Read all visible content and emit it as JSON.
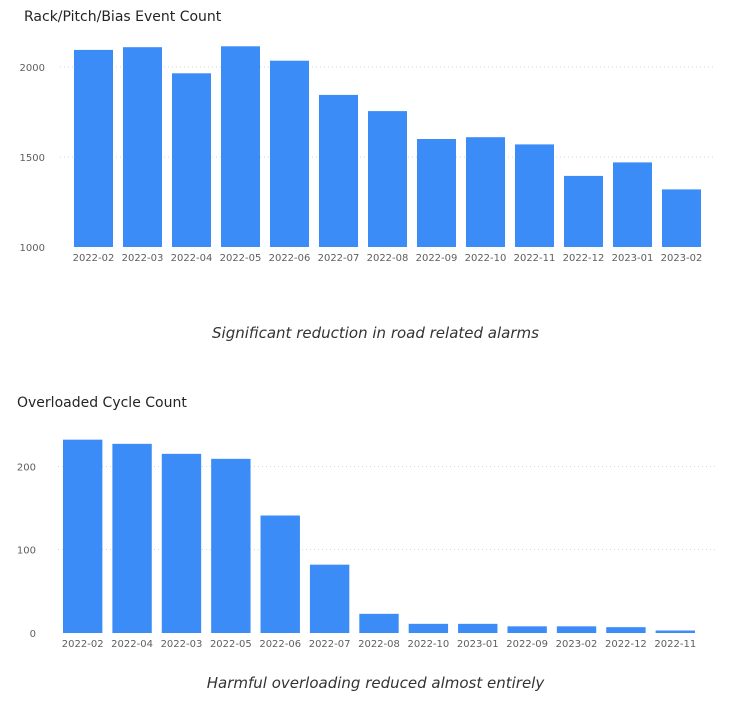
{
  "colors": {
    "bar": "#3c8cf8",
    "text": "#252423",
    "axis_text": "#605e5c",
    "grid": "#d6d6d6"
  },
  "chart_data": [
    {
      "type": "bar",
      "title": "Rack/Pitch/Bias Event Count",
      "xlabel": "",
      "ylabel": "",
      "categories": [
        "2022-02",
        "2022-03",
        "2022-04",
        "2022-05",
        "2022-06",
        "2022-07",
        "2022-08",
        "2022-09",
        "2022-10",
        "2022-11",
        "2022-12",
        "2023-01",
        "2023-02"
      ],
      "values": [
        2095,
        2110,
        1965,
        2115,
        2035,
        1845,
        1755,
        1600,
        1610,
        1570,
        1395,
        1470,
        1320
      ],
      "ylim": [
        1000,
        2200
      ],
      "yticks": [
        1000,
        1500,
        2000
      ],
      "grid": true,
      "caption": "Significant reduction in road related alarms"
    },
    {
      "type": "bar",
      "title": "Overloaded Cycle Count",
      "xlabel": "",
      "ylabel": "",
      "categories": [
        "2022-02",
        "2022-04",
        "2022-03",
        "2022-05",
        "2022-06",
        "2022-07",
        "2022-08",
        "2022-10",
        "2023-01",
        "2022-09",
        "2023-02",
        "2022-12",
        "2022-11"
      ],
      "values": [
        232,
        227,
        215,
        209,
        141,
        82,
        23,
        11,
        11,
        8,
        8,
        7,
        3
      ],
      "ylim": [
        0,
        240
      ],
      "yticks": [
        0,
        100,
        200
      ],
      "grid": true,
      "caption": "Harmful overloading reduced almost entirely"
    }
  ]
}
